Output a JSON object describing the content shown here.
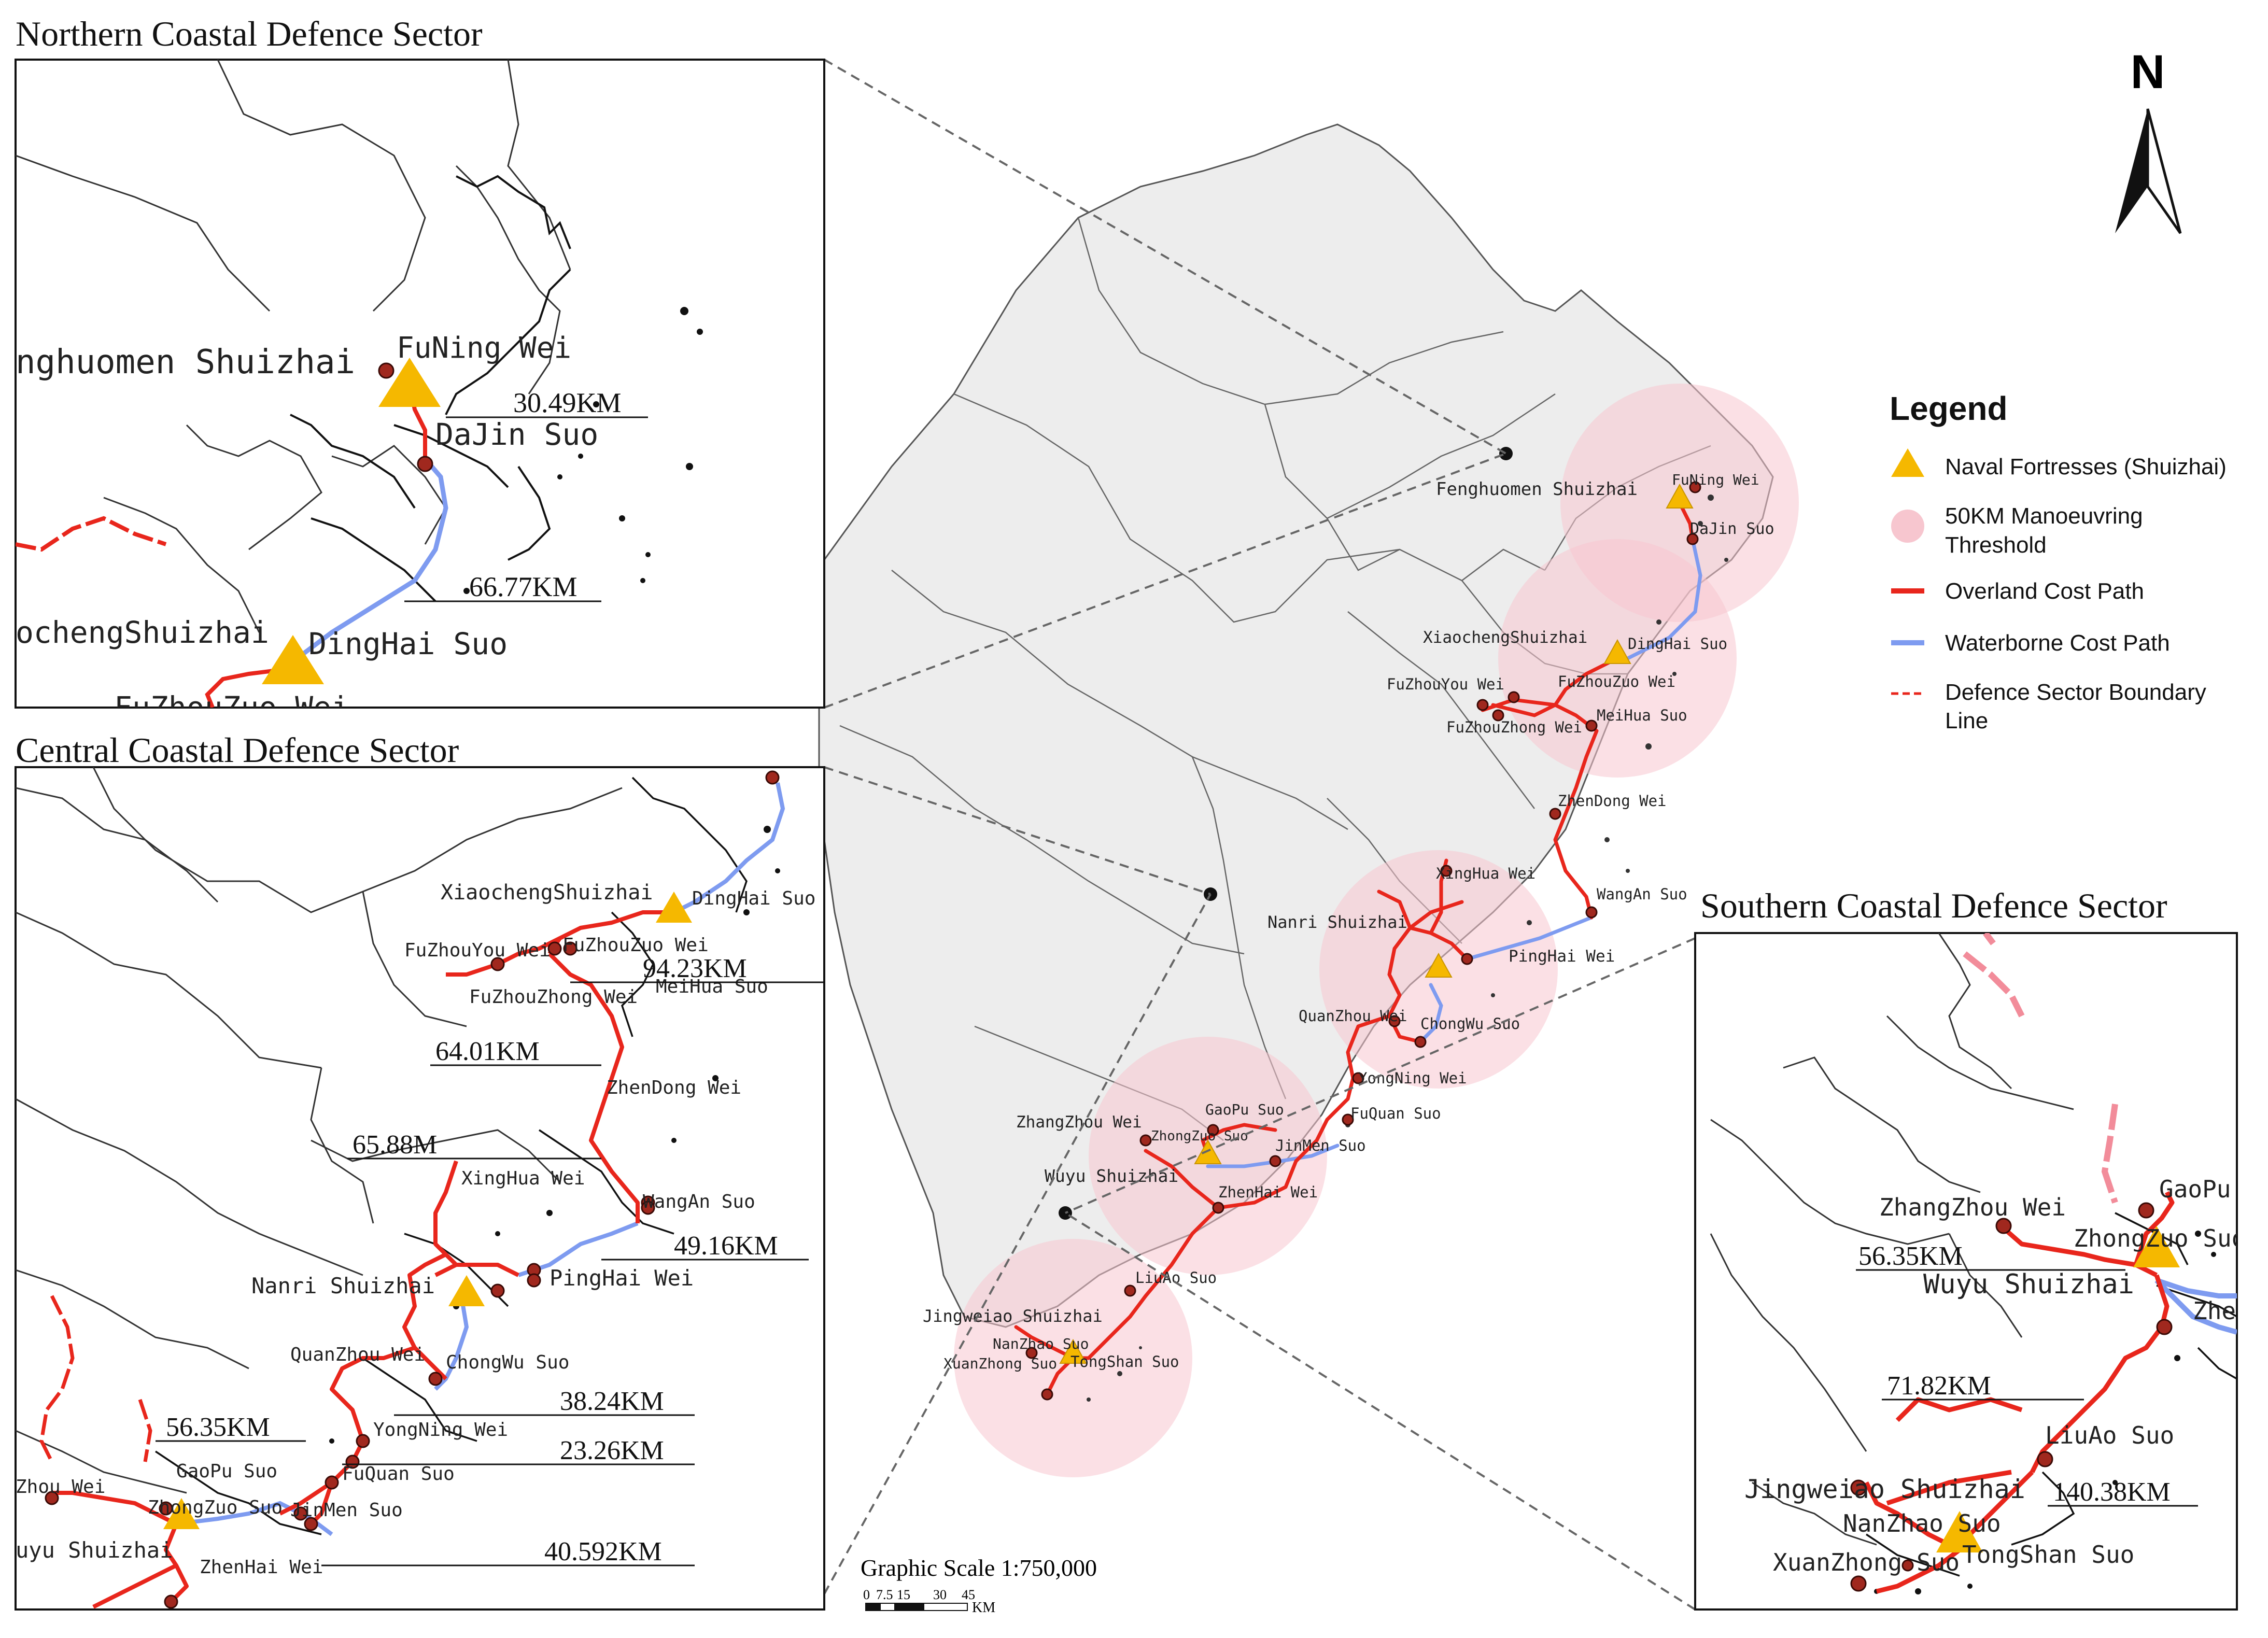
{
  "sectors": {
    "north_title": "Northern Coastal Defence Sector",
    "central_title": "Central Coastal Defence Sector",
    "south_title": "Southern Coastal Defence Sector"
  },
  "north_inset": {
    "labels": {
      "fenghuomen": "nghuomen Shuizhai",
      "funing": "FuNing Wei",
      "dajin": "DaJin Suo",
      "xiaocheng": "ochengShuizhai",
      "dinghai": "DingHai Suo",
      "fuzhou_cut": "FuZhouZuo Wei"
    },
    "distances": [
      "30.49KM",
      "66.77KM"
    ]
  },
  "central_inset": {
    "labels": {
      "xiaocheng": "XiaochengShuizhai",
      "dinghai": "DingHai Suo",
      "fuzhouyou": "FuZhouYou Wei",
      "fuzhouzuo": "FuZhouZuo Wei",
      "fuzhouzhong": "FuZhouZhong Wei",
      "meihua": "MeiHua Suo",
      "zhendong": "ZhenDong Wei",
      "xinghua": "XingHua Wei",
      "wangan": "WangAn Suo",
      "nanri": "Nanri Shuizhai",
      "pinghai": "PingHai Wei",
      "quanzhou": "QuanZhou Wei",
      "chongwu": "ChongWu Suo",
      "yongning": "YongNing Wei",
      "fuquan": "FuQuan Suo",
      "zhangzhou": "Zhou Wei",
      "gaopu": "GaoPu Suo",
      "zhongzuo": "ZhongZuo Suo",
      "jinmen": "JinMen Suo",
      "wuyu": "uyu Shuizhai",
      "zhenhai": "ZhenHai Wei"
    },
    "distances": [
      "94.23KM",
      "64.01KM",
      "65.88M",
      "49.16KM",
      "38.24KM",
      "23.26KM",
      "56.35KM",
      "40.592KM"
    ]
  },
  "south_inset": {
    "labels": {
      "zhangzhou": "ZhangZhou Wei",
      "gaopu": "GaoPu",
      "zhongzuo": "ZhongZuo Suo",
      "wuyu": "Wuyu Shuizhai",
      "zhenhai": "Zhen",
      "liuao": "LiuAo Suo",
      "jingweiao": "Jingweiao Shuizhai",
      "nanzhao": "NanZhao Suo",
      "tongshan": "TongShan Suo",
      "xuanzhong": "XuanZhong Suo"
    },
    "distances": [
      "56.35KM",
      "71.82KM",
      "140.38KM"
    ]
  },
  "main_map": {
    "labels": {
      "fenghuomen": "Fenghuomen Shuizhai",
      "funing": "FuNing Wei",
      "dajin": "DaJin Suo",
      "xiaocheng": "XiaochengShuizhai",
      "dinghai": "DingHai Suo",
      "fuzhouyou": "FuZhouYou Wei",
      "fuzhouzuo": "FuZhouZuo Wei",
      "fuzhouzhong": "FuZhouZhong Wei",
      "meihua": "MeiHua Suo",
      "zhendong": "ZhenDong Wei",
      "xinghua": "XingHua Wei",
      "wangan": "WangAn Suo",
      "nanri": "Nanri Shuizhai",
      "pinghai": "PingHai Wei",
      "quanzhou": "QuanZhou Wei",
      "chongwu": "ChongWu Suo",
      "yongning": "YongNing Wei",
      "fuquan": "FuQuan Suo",
      "zhangzhou": "ZhangZhou Wei",
      "gaopu": "GaoPu Suo",
      "zhongzuo": "ZhongZuo Suo",
      "jinmen": "JinMen Suo",
      "wuyu": "Wuyu Shuizhai",
      "zhenhai": "ZhenHai Wei",
      "liuao": "LiuAo Suo",
      "jingweiao": "Jingweiao Shuizhai",
      "nanzhao": "NanZhao Suo",
      "tongshan": "TongShan Suo",
      "xuanzhong": "XuanZhong Suo"
    }
  },
  "legend": {
    "title": "Legend",
    "items": [
      {
        "label": "Naval Fortresses (Shuizhai)",
        "symbol": "triangle"
      },
      {
        "label": "50KM Manoeuvring Threshold",
        "symbol": "circle"
      },
      {
        "label": "Overland Cost Path",
        "symbol": "red-line"
      },
      {
        "label": "Waterborne Cost Path",
        "symbol": "blue-line"
      },
      {
        "label": "Defence Sector Boundary Line",
        "symbol": "dashed-line"
      }
    ]
  },
  "north_arrow": {
    "label": "N"
  },
  "scale": {
    "title": "Graphic  Scale 1:750,000",
    "ticks": [
      "0",
      "7.5",
      "15",
      "30",
      "45"
    ],
    "unit": "KM"
  },
  "colors": {
    "fortress": "#F5B800",
    "threshold_circle": "#F7C6CF",
    "overland": "#E8261C",
    "waterborne": "#7E9BF0",
    "boundary": "#E8261C",
    "garrison_point": "#A0281E"
  }
}
